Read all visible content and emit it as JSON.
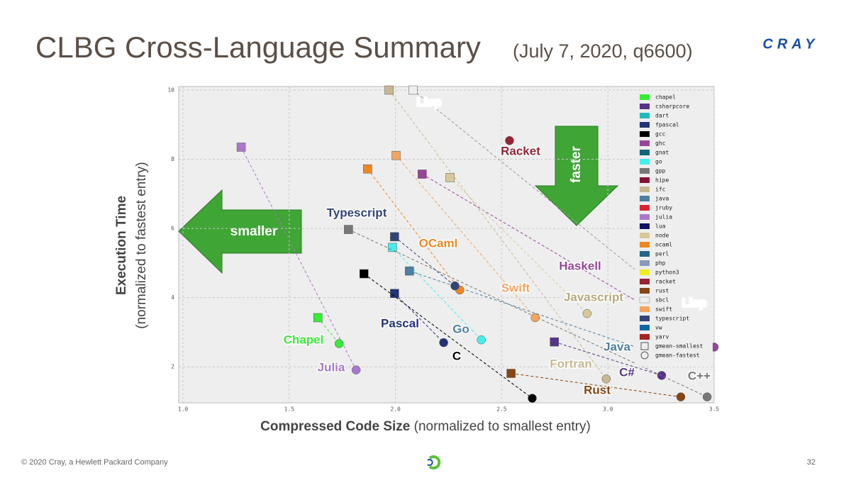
{
  "title": "CLBG Cross-Language Summary",
  "subtitle": "(July 7, 2020, q6600)",
  "logo": "CRAY",
  "footer": {
    "copyright": "© 2020 Cray, a Hewlett Packard Company",
    "page": "32"
  },
  "chart_data": {
    "type": "scatter",
    "y_label": {
      "main": "Execution Time",
      "sub": "(normalized to fastest entry)"
    },
    "x_label": {
      "main": "Compressed Code Size",
      "sub": "(normalized to smallest entry)"
    },
    "xlim": [
      0.98,
      3.5
    ],
    "ylim": [
      1,
      10
    ],
    "xticks": [
      {
        "value": 1,
        "label": "1.0"
      },
      1.5,
      {
        "value": 2,
        "label": "2.0"
      },
      2.5,
      {
        "value": 3,
        "label": "3.0"
      },
      3.5
    ],
    "yticks": [
      2,
      4,
      6,
      8,
      10
    ],
    "grid": true,
    "arrows": [
      "smaller",
      "faster"
    ],
    "series": [
      {
        "name": "chapel",
        "color": "#33ee33",
        "x": [
          1.635,
          1.735
        ],
        "values": [
          3.42,
          2.67
        ]
      },
      {
        "name": "csharpcore",
        "color": "#553388",
        "x": [
          2.748,
          3.253
        ],
        "values": [
          2.72,
          1.75
        ]
      },
      {
        "name": "dart",
        "color": "#22bbbb",
        "x": [],
        "values": []
      },
      {
        "name": "fpascal",
        "color": "#223377",
        "x": [
          1.996,
          2.227
        ],
        "values": [
          4.12,
          2.7
        ]
      },
      {
        "name": "gcc",
        "color": "#000000",
        "x": [
          1.852,
          2.644
        ],
        "values": [
          4.69,
          1.09
        ]
      },
      {
        "name": "ghc",
        "color": "#994499",
        "x": [
          2.126,
          3.5
        ],
        "values": [
          7.57,
          2.57
        ]
      },
      {
        "name": "gnat",
        "color": "#116677",
        "x": [],
        "values": []
      },
      {
        "name": "go",
        "color": "#44eeee",
        "x": [
          1.986,
          2.404
        ],
        "values": [
          5.45,
          2.78
        ]
      },
      {
        "name": "gpp",
        "color": "#777777",
        "x": [
          1.779,
          3.467
        ],
        "values": [
          5.97,
          1.13
        ]
      },
      {
        "name": "hipe",
        "color": "#881133",
        "x": [],
        "values": []
      },
      {
        "name": "ifc",
        "color": "#c8b890",
        "x": [
          1.97,
          2.992
        ],
        "values": [
          10,
          1.65
        ]
      },
      {
        "name": "java",
        "color": "#4d7f9f",
        "x": [
          2.066,
          3.152
        ],
        "values": [
          4.77,
          2.53
        ]
      },
      {
        "name": "jruby",
        "color": "#dd2233",
        "x": [],
        "values": []
      },
      {
        "name": "julia",
        "color": "#aa77cc",
        "x": [
          1.274,
          1.815
        ],
        "values": [
          8.35,
          1.91
        ]
      },
      {
        "name": "lua",
        "color": "#111166",
        "x": [],
        "values": []
      },
      {
        "name": "node",
        "color": "#d8c898",
        "x": [
          2.257,
          2.902
        ],
        "values": [
          7.47,
          3.54
        ]
      },
      {
        "name": "ocaml",
        "color": "#ee8822",
        "x": [
          1.869,
          2.303
        ],
        "values": [
          7.72,
          4.22
        ]
      },
      {
        "name": "perl",
        "color": "#226688",
        "x": [],
        "values": []
      },
      {
        "name": "php",
        "color": "#8899bb",
        "x": [],
        "values": []
      },
      {
        "name": "python3",
        "color": "#eeee22",
        "x": [],
        "values": []
      },
      {
        "name": "racket",
        "color": "#992233",
        "x": [
          null,
          2.537
        ],
        "values": [
          null,
          8.54
        ]
      },
      {
        "name": "rust",
        "color": "#884411",
        "x": [
          2.544,
          3.343
        ],
        "values": [
          1.81,
          1.13
        ]
      },
      {
        "name": "sbcl",
        "color": "#eeeeee",
        "x": [
          2.083,
          3.296
        ],
        "values": [
          10,
          3.97
        ]
      },
      {
        "name": "swift",
        "color": "#f4a460",
        "x": [
          2.003,
          2.658
        ],
        "values": [
          8.11,
          3.42
        ]
      },
      {
        "name": "typescript",
        "color": "#334477",
        "x": [
          1.996,
          2.28
        ],
        "values": [
          5.76,
          4.34
        ]
      },
      {
        "name": "vw",
        "color": "#1166aa",
        "x": [],
        "values": []
      },
      {
        "name": "yarv",
        "color": "#aa2222",
        "x": [],
        "values": []
      }
    ],
    "marker_legend": [
      "gmean-smallest",
      "gmean-fastest"
    ],
    "annotations": [
      {
        "text": "Lisp",
        "color": "#ffffff"
      },
      {
        "text": "Racket",
        "color": "#992233"
      },
      {
        "text": "Typescript",
        "color": "#334477"
      },
      {
        "text": "OCaml",
        "color": "#ee8822"
      },
      {
        "text": "Haskell",
        "color": "#994499"
      },
      {
        "text": "Swift",
        "color": "#f4a460"
      },
      {
        "text": "Javascript",
        "color": "#b8a878"
      },
      {
        "text": "Lisp",
        "color": "#ffffff"
      },
      {
        "text": "Pascal",
        "color": "#223377"
      },
      {
        "text": "Go",
        "color": "#4d7f9f"
      },
      {
        "text": "C",
        "color": "#000000"
      },
      {
        "text": "Chapel",
        "color": "#33ee33"
      },
      {
        "text": "Julia",
        "color": "#aa77cc"
      },
      {
        "text": "Java",
        "color": "#4d7f9f"
      },
      {
        "text": "Fortran",
        "color": "#c8b890"
      },
      {
        "text": "C#",
        "color": "#553388"
      },
      {
        "text": "C++",
        "color": "#777777"
      },
      {
        "text": "Rust",
        "color": "#884411"
      }
    ]
  }
}
